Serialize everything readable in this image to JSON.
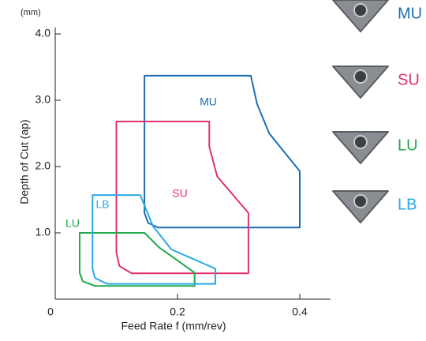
{
  "chart_data": {
    "type": "region",
    "x_label": "Feed Rate f (mm/rev)",
    "y_label": "Depth of Cut (ap)",
    "y_unit": "(mm)",
    "xlim": [
      0,
      0.45
    ],
    "xticks": [
      0,
      0.2,
      0.4
    ],
    "ylim": [
      0,
      4.1
    ],
    "yticks": [
      {
        "value": 1,
        "label": "1.0"
      },
      {
        "value": 2,
        "label": "2.0"
      },
      {
        "value": 3,
        "label": "3.0"
      },
      {
        "value": 4,
        "label": "4.0"
      }
    ],
    "series": [
      {
        "name": "MU",
        "color": "#1b6db3",
        "x": [
          0.146,
          0.32,
          0.33,
          0.35,
          0.4,
          0.4,
          0.168,
          0.152,
          0.146
        ],
        "values": [
          3.37,
          3.37,
          2.95,
          2.5,
          1.93,
          1.08,
          1.08,
          1.15,
          1.3
        ]
      },
      {
        "name": "SU",
        "color": "#e0306e",
        "x": [
          0.1,
          0.252,
          0.252,
          0.265,
          0.316,
          0.316,
          0.125,
          0.105,
          0.1
        ],
        "values": [
          2.68,
          2.68,
          2.3,
          1.85,
          1.3,
          0.39,
          0.39,
          0.5,
          0.7
        ]
      },
      {
        "name": "LU",
        "color": "#22a84a",
        "x": [
          0.04,
          0.146,
          0.17,
          0.228,
          0.228,
          0.065,
          0.045,
          0.04
        ],
        "values": [
          1.0,
          1.0,
          0.78,
          0.4,
          0.2,
          0.2,
          0.27,
          0.4
        ]
      },
      {
        "name": "LB",
        "color": "#29aae2",
        "x": [
          0.061,
          0.139,
          0.16,
          0.19,
          0.262,
          0.262,
          0.085,
          0.065,
          0.061
        ],
        "values": [
          1.57,
          1.57,
          1.1,
          0.75,
          0.46,
          0.23,
          0.23,
          0.32,
          0.46
        ]
      }
    ]
  }
}
